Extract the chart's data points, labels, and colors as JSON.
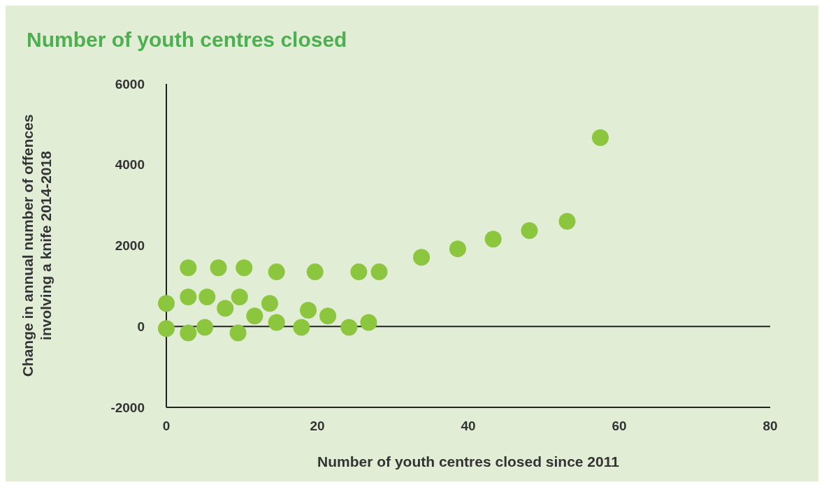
{
  "chart_data": {
    "type": "scatter",
    "title": "Number of youth centres closed",
    "xlabel": "Number of youth centres closed since 2011",
    "ylabel": "Change in annual number of offences\ninvolving a knife 2014-2018",
    "x": [
      0,
      0,
      2.9,
      2.9,
      2.9,
      5.4,
      5.1,
      6.9,
      7.8,
      9.5,
      9.7,
      10.3,
      11.7,
      13.7,
      14.6,
      14.6,
      17.9,
      18.8,
      19.7,
      21.4,
      24.2,
      25.5,
      26.8,
      28.2,
      33.8,
      38.6,
      43.3,
      48.1,
      53.1,
      57.5
    ],
    "values": [
      570,
      -50,
      1450,
      730,
      -160,
      730,
      -20,
      1450,
      450,
      -160,
      730,
      1450,
      260,
      570,
      1350,
      100,
      -20,
      400,
      1350,
      260,
      -20,
      1350,
      100,
      1350,
      1710,
      1920,
      2160,
      2370,
      2600,
      4670
    ],
    "color": "#8cc63f",
    "marker": "circle",
    "xlim": [
      0,
      80
    ],
    "xticks": [
      0,
      20,
      40,
      60,
      80
    ],
    "ylim": [
      -2000,
      6000
    ],
    "yticks": [
      -2000,
      0,
      2000,
      4000,
      6000
    ],
    "ref_lines": [
      {
        "axis": "y",
        "value": 0,
        "color": "#222222"
      }
    ],
    "grid": false,
    "legend": false
  }
}
